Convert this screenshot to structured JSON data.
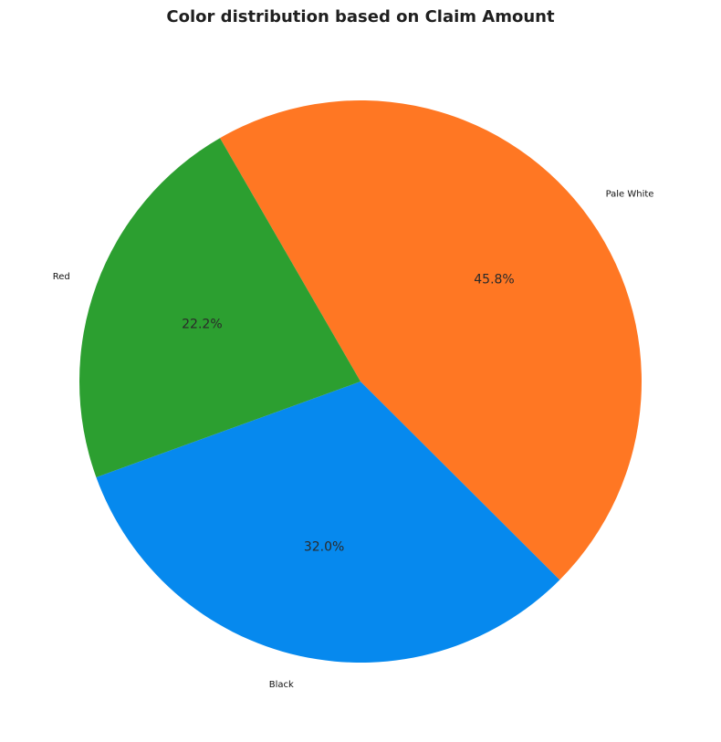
{
  "chart_data": {
    "type": "pie",
    "title": "Color distribution based on Claim Amount",
    "categories": [
      "Pale White",
      "Black",
      "Red"
    ],
    "values": [
      45.8,
      32.0,
      22.2
    ],
    "percent_labels": [
      "45.8%",
      "32.0%",
      "22.2%"
    ],
    "colors": [
      "#ff7723",
      "#0689ee",
      "#2c9f30"
    ],
    "start_angle_deg": 120,
    "direction": "clockwise"
  }
}
